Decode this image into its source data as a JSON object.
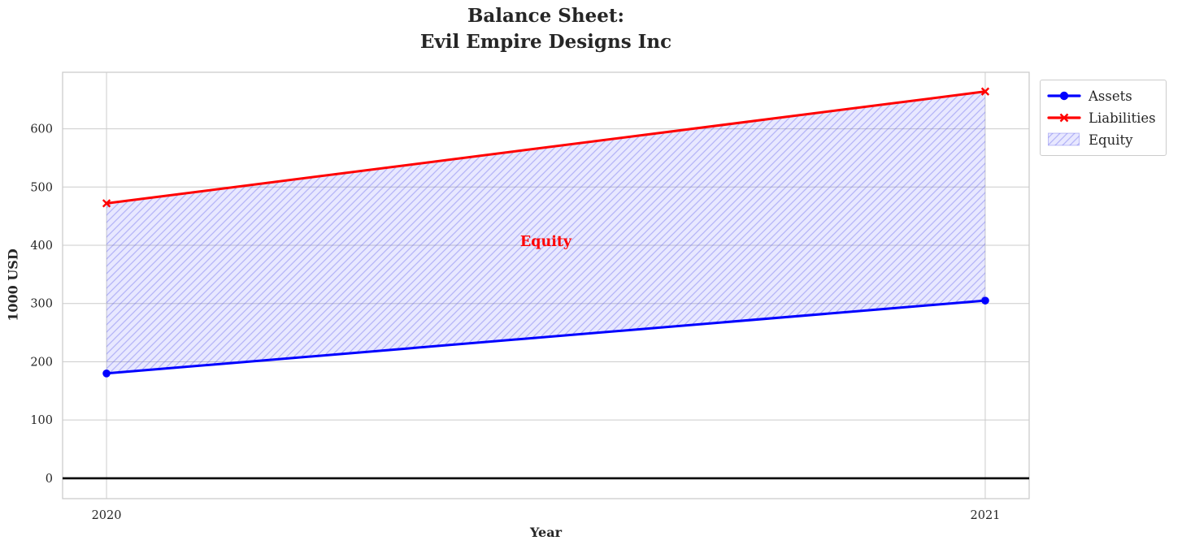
{
  "chart_data": {
    "type": "line",
    "title": "Balance Sheet:\nEvil Empire Designs Inc",
    "xlabel": "Year",
    "ylabel": "1000 USD",
    "x": [
      2020,
      2021
    ],
    "series": [
      {
        "name": "Assets",
        "values": [
          180,
          305
        ],
        "color": "#0000ff",
        "marker": "circle"
      },
      {
        "name": "Liabilities",
        "values": [
          472,
          664
        ],
        "color": "#ff0000",
        "marker": "x"
      }
    ],
    "fill_between": {
      "label": "Equity",
      "lower_series": "Assets",
      "upper_series": "Liabilities",
      "hatch": "/"
    },
    "annotation": {
      "text": "Equity",
      "x": 2020.5,
      "y": 406,
      "color": "#ff0000"
    },
    "xticks": [
      2020,
      2021
    ],
    "yticks": [
      0,
      100,
      200,
      300,
      400,
      500,
      600
    ],
    "xlim": [
      2019.95,
      2021.05
    ],
    "ylim": [
      -35,
      697
    ],
    "grid": true,
    "baseline": 0,
    "legend": {
      "position": "outside-top-right",
      "entries": [
        "Assets",
        "Liabilities",
        "Equity"
      ]
    },
    "colors": {
      "assets": "#0000ff",
      "liabilities": "#ff0000",
      "equity_fill": "rgba(0,0,255,0.09)",
      "equity_hatch": "rgba(70,70,230,0.32)",
      "text": "#262626",
      "grid": "#cccccc",
      "spine": "#cccccc",
      "baseline": "#000000",
      "background": "#ffffff"
    }
  }
}
